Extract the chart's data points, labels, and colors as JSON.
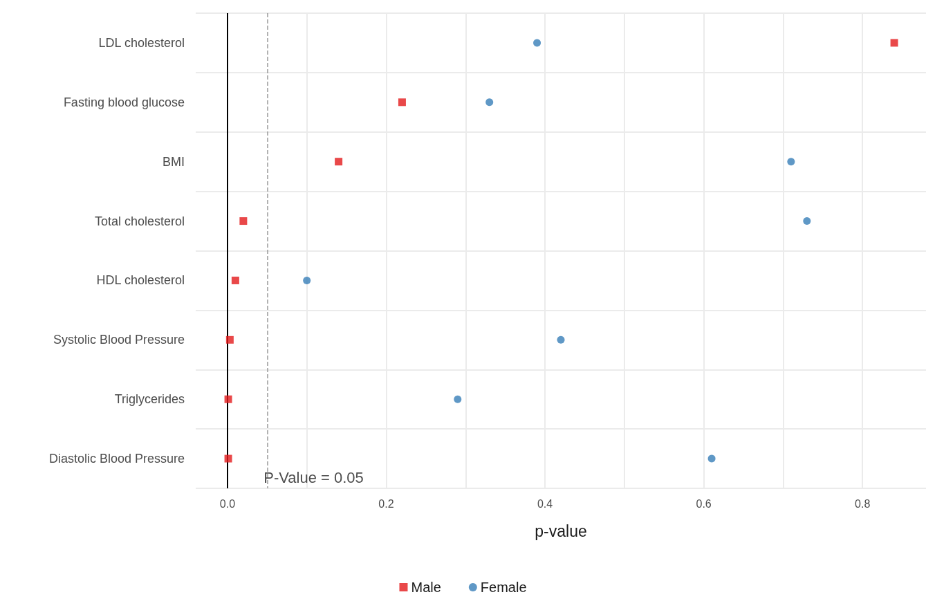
{
  "chart_data": {
    "type": "scatter",
    "orientation": "horizontal",
    "xlabel": "p-value",
    "categories": [
      "LDL cholesterol",
      "Fasting blood glucose",
      "BMI",
      "Total cholesterol",
      "HDL cholesterol",
      "Systolic Blood Pressure",
      "Triglycerides",
      "Diastolic Blood Pressure"
    ],
    "series": [
      {
        "name": "Male",
        "color": "#e41a1c",
        "marker": "square",
        "values": [
          0.84,
          0.22,
          0.14,
          0.02,
          0.01,
          0.003,
          0.001,
          0.001
        ]
      },
      {
        "name": "Female",
        "color": "#377eb8",
        "marker": "circle",
        "values": [
          0.39,
          0.33,
          0.71,
          0.73,
          0.1,
          0.42,
          0.29,
          0.61
        ]
      }
    ],
    "xlim": [
      -0.04,
      0.88
    ],
    "xticks": [
      {
        "value": 0,
        "label": "0.0"
      },
      {
        "value": 0.1,
        "label": null
      },
      {
        "value": 0.2,
        "label": "0.2"
      },
      {
        "value": 0.3,
        "label": null
      },
      {
        "value": 0.4,
        "label": "0.4"
      },
      {
        "value": 0.5,
        "label": null
      },
      {
        "value": 0.6,
        "label": "0.6"
      },
      {
        "value": 0.7,
        "label": null
      },
      {
        "value": 0.8,
        "label": "0.8"
      }
    ],
    "ref_lines": [
      {
        "axis": "x",
        "value": 0,
        "label": null,
        "color": "#000000",
        "line_style": "solid"
      },
      {
        "axis": "x",
        "value": 0.05,
        "label": "P-Value = 0.05",
        "color": "#999999",
        "line_style": "dashed"
      }
    ],
    "grid": true,
    "legend": "bottom"
  }
}
